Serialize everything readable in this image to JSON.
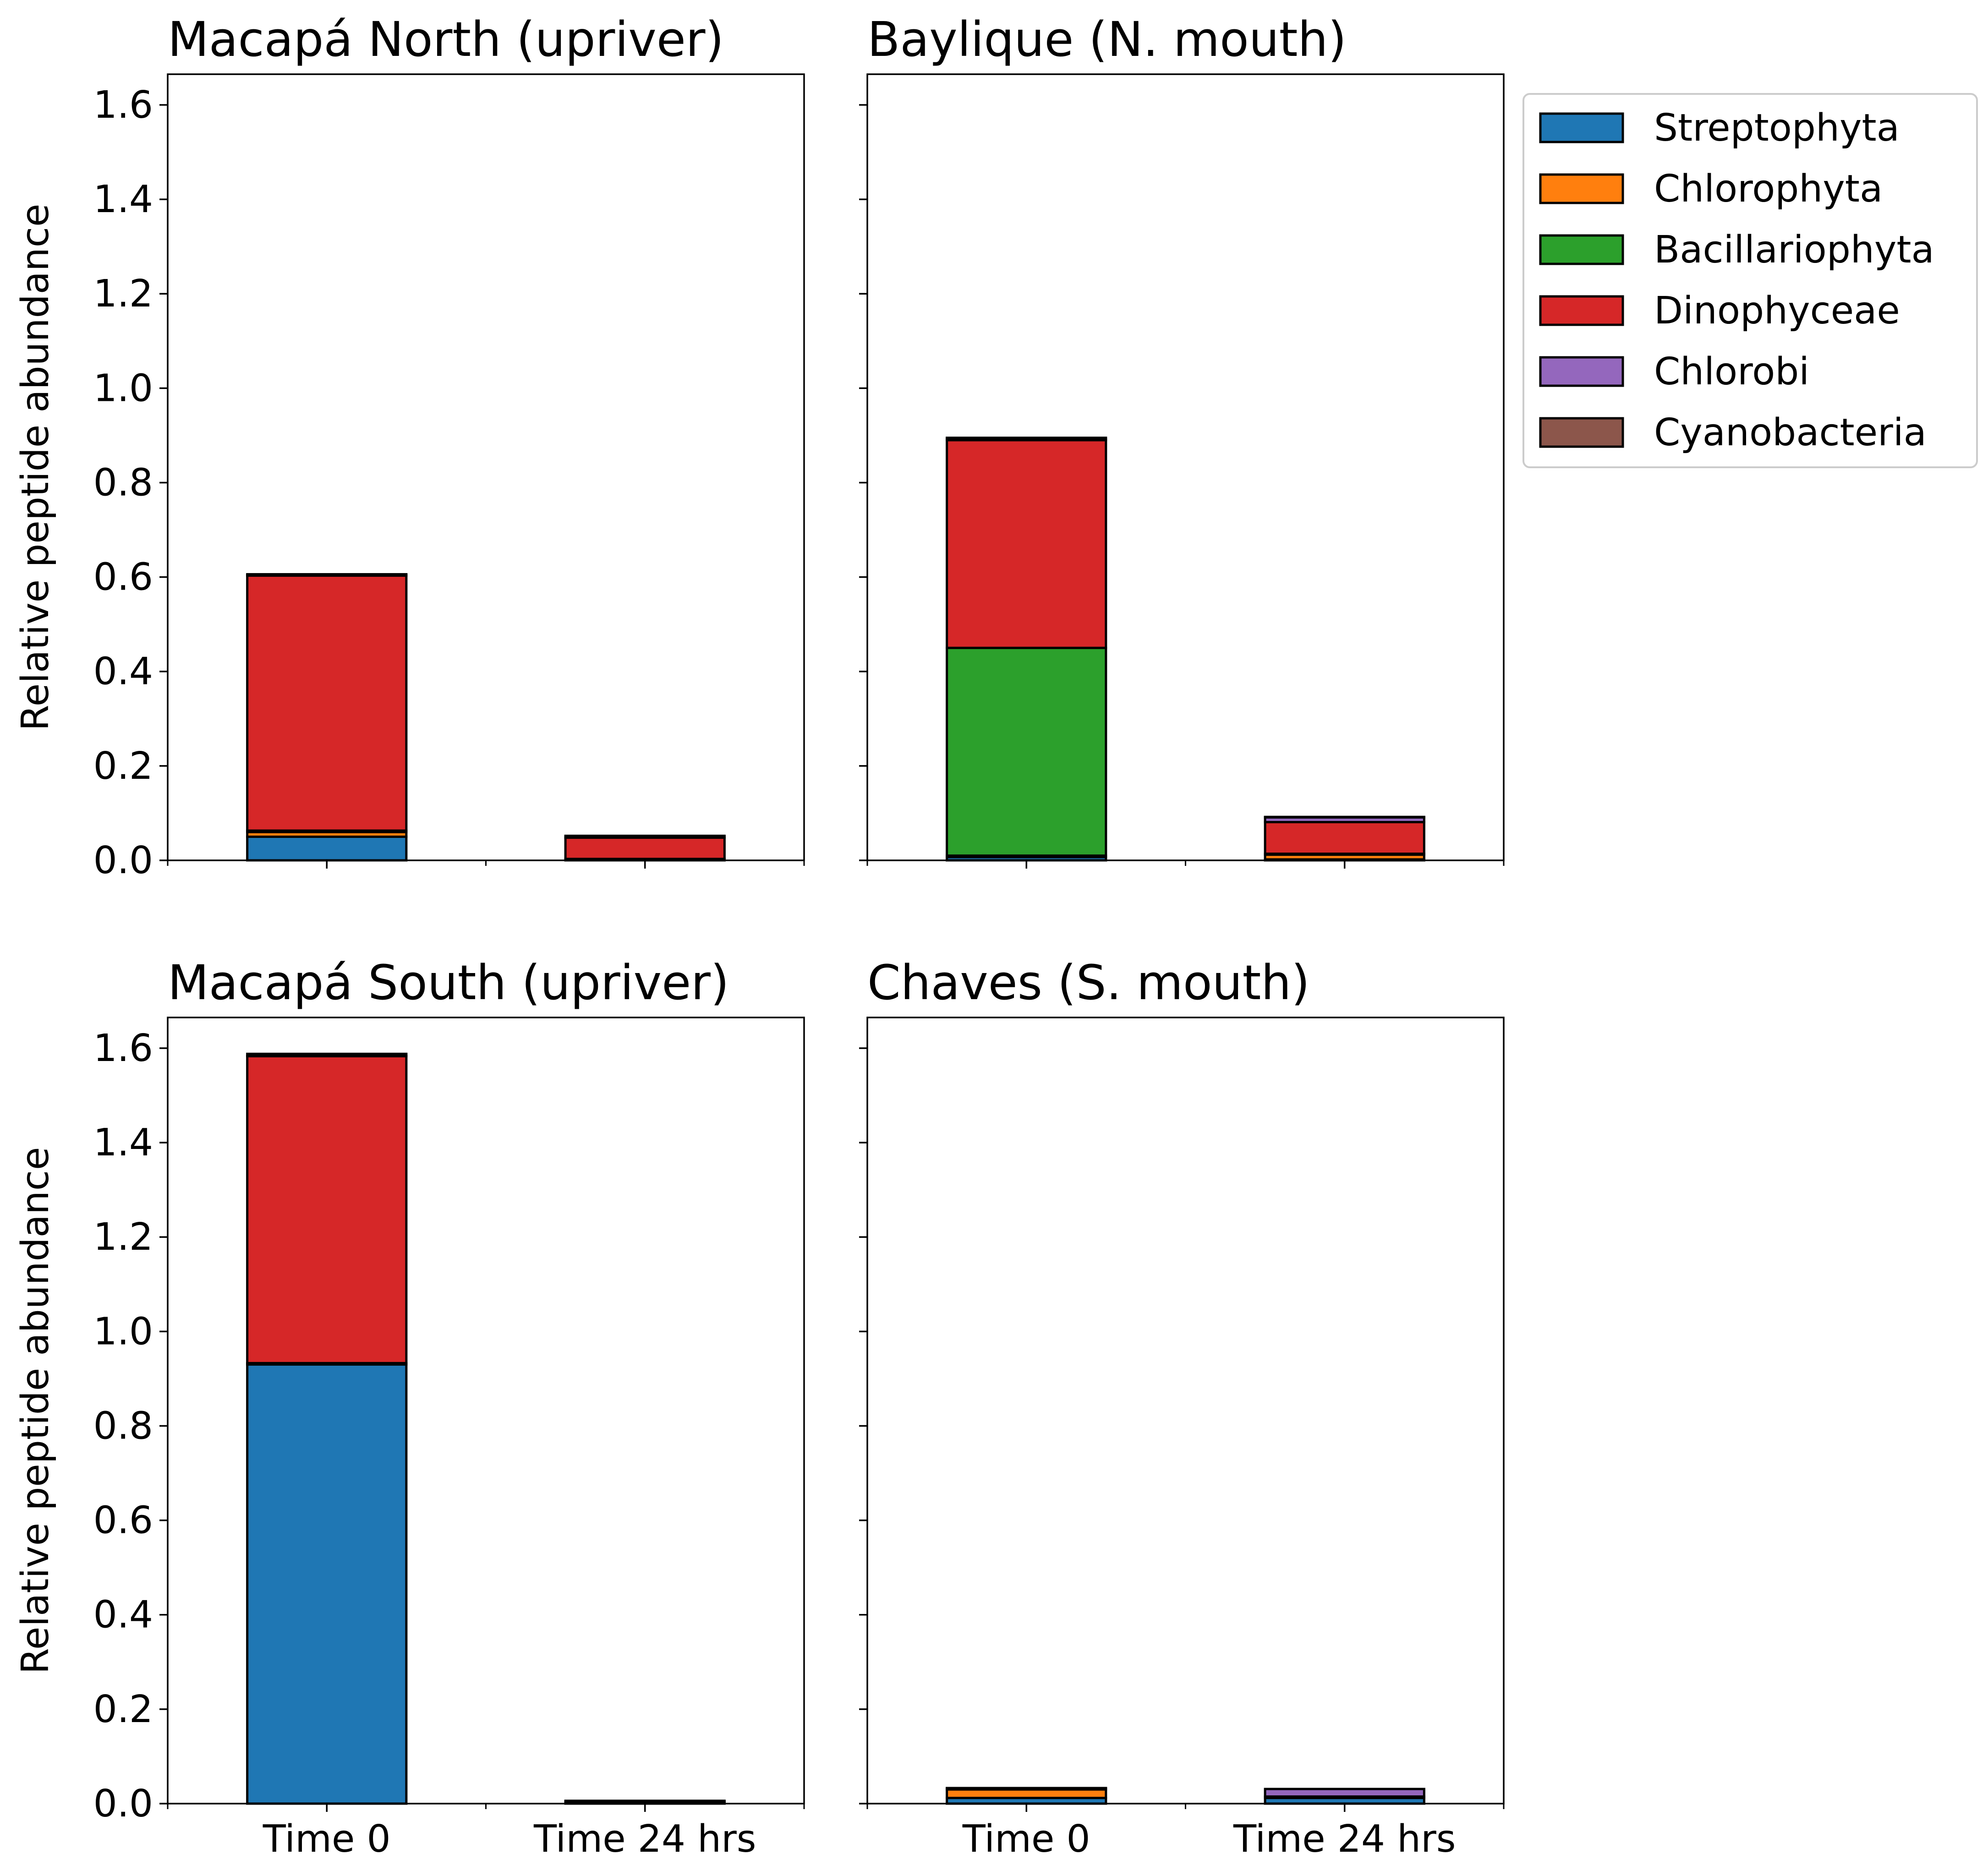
{
  "chart_data": {
    "type": "bar",
    "stacked": true,
    "ylabel": "Relative peptide abundance",
    "ylim": [
      0,
      1.665
    ],
    "yticks": [
      "0.0",
      "0.2",
      "0.4",
      "0.6",
      "0.8",
      "1.0",
      "1.2",
      "1.4",
      "1.6"
    ],
    "ytick_values": [
      0,
      0.2,
      0.4,
      0.6,
      0.8,
      1.0,
      1.2,
      1.4,
      1.6
    ],
    "categories": [
      "Time 0",
      "Time 24 hrs"
    ],
    "sharey": true,
    "grid": false,
    "legend": {
      "placement": "outside top-right",
      "entries": [
        {
          "name": "Streptophyta",
          "color": "#1f77b4"
        },
        {
          "name": "Chlorophyta",
          "color": "#ff7f0e"
        },
        {
          "name": "Bacillariophyta",
          "color": "#2ca02c"
        },
        {
          "name": "Dinophyceae",
          "color": "#d62728"
        },
        {
          "name": "Chlorobi",
          "color": "#9467bd"
        },
        {
          "name": "Cyanobacteria",
          "color": "#8c564b"
        }
      ]
    },
    "panels": [
      {
        "title": "Macapá North (upriver)",
        "show_ylabel": true,
        "show_xticklabels": false,
        "series": [
          {
            "name": "Streptophyta",
            "values": [
              0.05,
              0.002
            ]
          },
          {
            "name": "Chlorophyta",
            "values": [
              0.01,
              0.001
            ]
          },
          {
            "name": "Bacillariophyta",
            "values": [
              0.003,
              0.0
            ]
          },
          {
            "name": "Dinophyceae",
            "values": [
              0.54,
              0.045
            ]
          },
          {
            "name": "Chlorobi",
            "values": [
              0.001,
              0.001
            ]
          },
          {
            "name": "Cyanobacteria",
            "values": [
              0.002,
              0.003
            ]
          }
        ]
      },
      {
        "title": "Baylique (N. mouth)",
        "show_ylabel": false,
        "show_xticklabels": false,
        "series": [
          {
            "name": "Streptophyta",
            "values": [
              0.007,
              0.002
            ]
          },
          {
            "name": "Chlorophyta",
            "values": [
              0.003,
              0.01
            ]
          },
          {
            "name": "Bacillariophyta",
            "values": [
              0.44,
              0.002
            ]
          },
          {
            "name": "Dinophyceae",
            "values": [
              0.44,
              0.067
            ]
          },
          {
            "name": "Chlorobi",
            "values": [
              0.002,
              0.01
            ]
          },
          {
            "name": "Cyanobacteria",
            "values": [
              0.003,
              0.001
            ]
          }
        ]
      },
      {
        "title": "Macapá South (upriver)",
        "show_ylabel": true,
        "show_xticklabels": true,
        "series": [
          {
            "name": "Streptophyta",
            "values": [
              0.93,
              0.001
            ]
          },
          {
            "name": "Chlorophyta",
            "values": [
              0.002,
              0.001
            ]
          },
          {
            "name": "Bacillariophyta",
            "values": [
              0.001,
              0.0
            ]
          },
          {
            "name": "Dinophyceae",
            "values": [
              0.65,
              0.001
            ]
          },
          {
            "name": "Chlorobi",
            "values": [
              0.001,
              0.001
            ]
          },
          {
            "name": "Cyanobacteria",
            "values": [
              0.004,
              0.002
            ]
          }
        ]
      },
      {
        "title": "Chaves (S. mouth)",
        "show_ylabel": false,
        "show_xticklabels": true,
        "series": [
          {
            "name": "Streptophyta",
            "values": [
              0.012,
              0.012
            ]
          },
          {
            "name": "Chlorophyta",
            "values": [
              0.018,
              0.002
            ]
          },
          {
            "name": "Bacillariophyta",
            "values": [
              0.0,
              0.0
            ]
          },
          {
            "name": "Dinophyceae",
            "values": [
              0.002,
              0.001
            ]
          },
          {
            "name": "Chlorobi",
            "values": [
              0.001,
              0.016
            ]
          },
          {
            "name": "Cyanobacteria",
            "values": [
              0.0,
              0.0
            ]
          }
        ]
      }
    ]
  }
}
